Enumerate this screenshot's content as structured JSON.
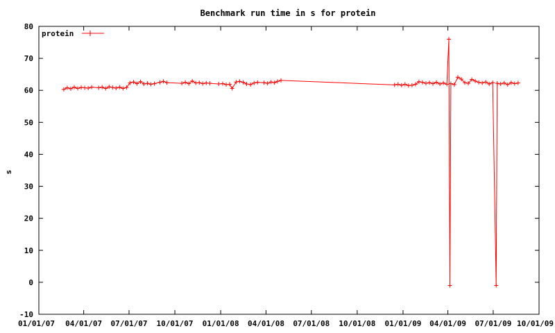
{
  "chart_data": {
    "type": "line",
    "title": "Benchmark run time in s for protein",
    "xlabel": "",
    "ylabel": "s",
    "x_scale": "date",
    "xlim": [
      "2007-01-01",
      "2009-10-01"
    ],
    "ylim": [
      -10,
      80
    ],
    "x_tick_labels": [
      "01/01/07",
      "04/01/07",
      "07/01/07",
      "10/01/07",
      "01/01/08",
      "04/01/08",
      "07/01/08",
      "10/01/08",
      "01/01/09",
      "04/01/09",
      "07/01/09",
      "10/01/09"
    ],
    "x_tick_dates": [
      "2007-01-01",
      "2007-04-01",
      "2007-07-01",
      "2007-10-01",
      "2008-01-01",
      "2008-04-01",
      "2008-07-01",
      "2008-10-01",
      "2009-01-01",
      "2009-04-01",
      "2009-07-01",
      "2009-10-01"
    ],
    "y_ticks": [
      -10,
      0,
      10,
      20,
      30,
      40,
      50,
      60,
      70,
      80
    ],
    "legend_position": "top-left",
    "grid": false,
    "series": [
      {
        "name": "protein",
        "color": "#ff0000",
        "marker": "plus",
        "points": [
          [
            "2007-02-20",
            60.3
          ],
          [
            "2007-02-27",
            60.8
          ],
          [
            "2007-03-06",
            60.5
          ],
          [
            "2007-03-13",
            61.0
          ],
          [
            "2007-03-20",
            60.6
          ],
          [
            "2007-03-27",
            60.9
          ],
          [
            "2007-04-03",
            60.8
          ],
          [
            "2007-04-10",
            60.7
          ],
          [
            "2007-04-17",
            61.0
          ],
          [
            "2007-05-01",
            60.8
          ],
          [
            "2007-05-08",
            61.0
          ],
          [
            "2007-05-15",
            60.6
          ],
          [
            "2007-05-22",
            61.1
          ],
          [
            "2007-05-29",
            60.9
          ],
          [
            "2007-06-05",
            60.7
          ],
          [
            "2007-06-12",
            61.0
          ],
          [
            "2007-06-19",
            60.6
          ],
          [
            "2007-06-26",
            60.9
          ],
          [
            "2007-07-03",
            62.3
          ],
          [
            "2007-07-10",
            62.6
          ],
          [
            "2007-07-17",
            62.1
          ],
          [
            "2007-07-24",
            62.7
          ],
          [
            "2007-07-31",
            62.0
          ],
          [
            "2007-08-07",
            62.2
          ],
          [
            "2007-08-14",
            61.9
          ],
          [
            "2007-08-21",
            62.1
          ],
          [
            "2007-09-01",
            62.5
          ],
          [
            "2007-09-08",
            62.8
          ],
          [
            "2007-09-15",
            62.4
          ],
          [
            "2007-10-15",
            62.2
          ],
          [
            "2007-10-22",
            62.5
          ],
          [
            "2007-10-29",
            62.1
          ],
          [
            "2007-11-05",
            62.9
          ],
          [
            "2007-11-12",
            62.3
          ],
          [
            "2007-11-19",
            62.4
          ],
          [
            "2007-11-26",
            62.1
          ],
          [
            "2007-12-03",
            62.3
          ],
          [
            "2007-12-10",
            62.2
          ],
          [
            "2007-12-28",
            62.0
          ],
          [
            "2008-01-05",
            62.1
          ],
          [
            "2008-01-12",
            61.8
          ],
          [
            "2008-01-19",
            61.9
          ],
          [
            "2008-01-24",
            60.6
          ],
          [
            "2008-02-01",
            62.6
          ],
          [
            "2008-02-08",
            62.8
          ],
          [
            "2008-02-15",
            62.5
          ],
          [
            "2008-02-22",
            62.0
          ],
          [
            "2008-03-01",
            61.8
          ],
          [
            "2008-03-08",
            62.3
          ],
          [
            "2008-03-15",
            62.5
          ],
          [
            "2008-03-28",
            62.4
          ],
          [
            "2008-04-04",
            62.2
          ],
          [
            "2008-04-11",
            62.6
          ],
          [
            "2008-04-18",
            62.4
          ],
          [
            "2008-04-24",
            62.8
          ],
          [
            "2008-05-01",
            63.1
          ],
          [
            "2008-12-15",
            61.7
          ],
          [
            "2008-12-22",
            61.9
          ],
          [
            "2008-12-29",
            61.6
          ],
          [
            "2009-01-05",
            61.9
          ],
          [
            "2009-01-12",
            61.5
          ],
          [
            "2009-01-19",
            61.6
          ],
          [
            "2009-01-26",
            61.9
          ],
          [
            "2009-02-02",
            62.7
          ],
          [
            "2009-02-09",
            62.5
          ],
          [
            "2009-02-16",
            62.2
          ],
          [
            "2009-02-23",
            62.4
          ],
          [
            "2009-03-02",
            62.1
          ],
          [
            "2009-03-09",
            62.5
          ],
          [
            "2009-03-16",
            62.0
          ],
          [
            "2009-03-23",
            62.3
          ],
          [
            "2009-03-30",
            61.9
          ],
          [
            "2009-04-03",
            76.0
          ],
          [
            "2009-04-05",
            -1.0
          ],
          [
            "2009-04-07",
            62.1
          ],
          [
            "2009-04-14",
            61.8
          ],
          [
            "2009-04-21",
            64.1
          ],
          [
            "2009-04-28",
            63.5
          ],
          [
            "2009-05-05",
            62.4
          ],
          [
            "2009-05-12",
            62.2
          ],
          [
            "2009-05-19",
            63.4
          ],
          [
            "2009-05-26",
            62.9
          ],
          [
            "2009-06-02",
            62.5
          ],
          [
            "2009-06-09",
            62.3
          ],
          [
            "2009-06-16",
            62.6
          ],
          [
            "2009-06-23",
            62.0
          ],
          [
            "2009-06-30",
            62.4
          ],
          [
            "2009-07-07",
            -1.0
          ],
          [
            "2009-07-09",
            62.2
          ],
          [
            "2009-07-16",
            62.0
          ],
          [
            "2009-07-23",
            62.3
          ],
          [
            "2009-07-30",
            61.8
          ],
          [
            "2009-08-06",
            62.4
          ],
          [
            "2009-08-13",
            62.1
          ],
          [
            "2009-08-20",
            62.3
          ]
        ]
      }
    ]
  }
}
